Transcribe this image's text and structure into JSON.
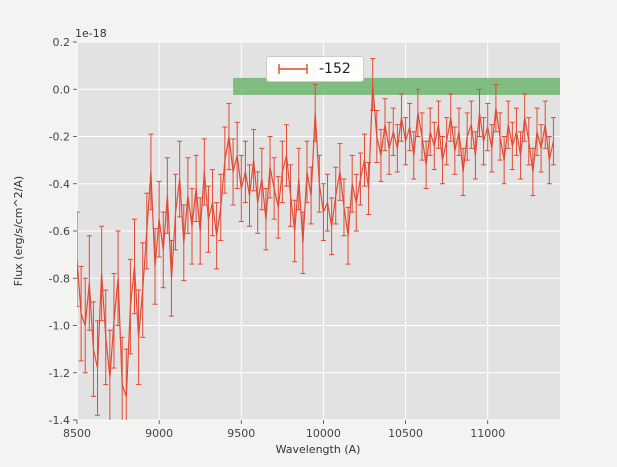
{
  "figure": {
    "bg": "#f3f3f1",
    "axes_bg": "#e2e2e2",
    "grid_color": "#ffffff",
    "tick_color": "#444444",
    "text_color": "#333333"
  },
  "legend": {
    "label": "-152"
  },
  "chart_data": {
    "type": "line",
    "title": "",
    "xlabel": "Wavelength (A)",
    "ylabel": "Flux (erg/s/cm^2/A)",
    "offset_text": "1e-18",
    "xlim": [
      8500,
      11440
    ],
    "ylim": [
      -1.4,
      0.2
    ],
    "x_ticks": [
      8500,
      9000,
      9500,
      10000,
      10500,
      11000
    ],
    "y_ticks": [
      -1.4,
      -1.2,
      -1.0,
      -0.8,
      -0.6,
      -0.4,
      -0.2,
      0.0,
      0.2
    ],
    "grid": true,
    "legend_position": "upper center",
    "band": {
      "x_start": 9450,
      "x_end": 11440,
      "y_bottom": -0.024,
      "y_top": 0.048,
      "color": "#6db56d",
      "opacity": 0.85
    },
    "series": [
      {
        "name": "-152",
        "color": "#E24A33",
        "x": [
          8500,
          8525,
          8550,
          8575,
          8600,
          8625,
          8650,
          8675,
          8700,
          8725,
          8750,
          8775,
          8800,
          8825,
          8850,
          8875,
          8900,
          8925,
          8950,
          8975,
          9000,
          9025,
          9050,
          9075,
          9100,
          9125,
          9150,
          9175,
          9200,
          9225,
          9250,
          9275,
          9300,
          9325,
          9350,
          9375,
          9400,
          9425,
          9450,
          9475,
          9500,
          9525,
          9550,
          9575,
          9600,
          9625,
          9650,
          9675,
          9700,
          9725,
          9750,
          9775,
          9800,
          9825,
          9850,
          9875,
          9900,
          9925,
          9950,
          9975,
          10000,
          10025,
          10050,
          10075,
          10100,
          10125,
          10150,
          10175,
          10200,
          10225,
          10250,
          10275,
          10300,
          10325,
          10350,
          10375,
          10400,
          10425,
          10450,
          10475,
          10500,
          10525,
          10550,
          10575,
          10600,
          10625,
          10650,
          10675,
          10700,
          10725,
          10750,
          10775,
          10800,
          10825,
          10850,
          10875,
          10900,
          10925,
          10950,
          10975,
          11000,
          11025,
          11050,
          11075,
          11100,
          11125,
          11150,
          11175,
          11200,
          11225,
          11250,
          11275,
          11300,
          11325,
          11350,
          11375,
          11400
        ],
        "y": [
          -0.72,
          -0.95,
          -1.0,
          -0.82,
          -1.1,
          -1.18,
          -0.78,
          -1.05,
          -1.22,
          -0.98,
          -0.8,
          -1.25,
          -1.3,
          -0.92,
          -0.75,
          -1.05,
          -0.85,
          -0.6,
          -0.35,
          -0.75,
          -0.55,
          -0.68,
          -0.45,
          -0.8,
          -0.52,
          -0.38,
          -0.65,
          -0.45,
          -0.58,
          -0.42,
          -0.6,
          -0.35,
          -0.55,
          -0.48,
          -0.62,
          -0.5,
          -0.3,
          -0.2,
          -0.35,
          -0.28,
          -0.42,
          -0.35,
          -0.45,
          -0.3,
          -0.48,
          -0.38,
          -0.55,
          -0.33,
          -0.42,
          -0.5,
          -0.35,
          -0.28,
          -0.45,
          -0.6,
          -0.38,
          -0.65,
          -0.35,
          -0.45,
          -0.1,
          -0.4,
          -0.52,
          -0.48,
          -0.58,
          -0.45,
          -0.35,
          -0.5,
          -0.62,
          -0.4,
          -0.48,
          -0.38,
          -0.3,
          -0.42,
          0.02,
          -0.2,
          -0.28,
          -0.15,
          -0.25,
          -0.18,
          -0.25,
          -0.12,
          -0.22,
          -0.16,
          -0.28,
          -0.1,
          -0.2,
          -0.32,
          -0.18,
          -0.24,
          -0.15,
          -0.3,
          -0.22,
          -0.12,
          -0.26,
          -0.18,
          -0.35,
          -0.2,
          -0.15,
          -0.28,
          -0.1,
          -0.22,
          -0.16,
          -0.25,
          -0.08,
          -0.2,
          -0.3,
          -0.15,
          -0.24,
          -0.18,
          -0.28,
          -0.12,
          -0.22,
          -0.35,
          -0.18,
          -0.25,
          -0.15,
          -0.3,
          -0.22
        ],
        "yerr": [
          0.2,
          0.2,
          0.2,
          0.2,
          0.2,
          0.2,
          0.2,
          0.2,
          0.2,
          0.2,
          0.2,
          0.2,
          0.2,
          0.2,
          0.2,
          0.2,
          0.2,
          0.16,
          0.16,
          0.16,
          0.16,
          0.16,
          0.16,
          0.16,
          0.16,
          0.16,
          0.16,
          0.16,
          0.16,
          0.14,
          0.14,
          0.14,
          0.14,
          0.14,
          0.14,
          0.14,
          0.14,
          0.14,
          0.14,
          0.14,
          0.14,
          0.13,
          0.13,
          0.13,
          0.13,
          0.13,
          0.13,
          0.13,
          0.13,
          0.13,
          0.13,
          0.13,
          0.13,
          0.13,
          0.13,
          0.13,
          0.13,
          0.12,
          0.12,
          0.12,
          0.12,
          0.12,
          0.12,
          0.12,
          0.12,
          0.12,
          0.12,
          0.12,
          0.12,
          0.11,
          0.11,
          0.11,
          0.11,
          0.11,
          0.11,
          0.11,
          0.11,
          0.1,
          0.1,
          0.1,
          0.1,
          0.1,
          0.1,
          0.1,
          0.1,
          0.1,
          0.1,
          0.1,
          0.1,
          0.1,
          0.1,
          0.1,
          0.1,
          0.1,
          0.1,
          0.1,
          0.1,
          0.1,
          0.1,
          0.1,
          0.1,
          0.1,
          0.1,
          0.1,
          0.1,
          0.1,
          0.1,
          0.1,
          0.1,
          0.1,
          0.1,
          0.1,
          0.1,
          0.1,
          0.1,
          0.1,
          0.1
        ]
      }
    ]
  }
}
